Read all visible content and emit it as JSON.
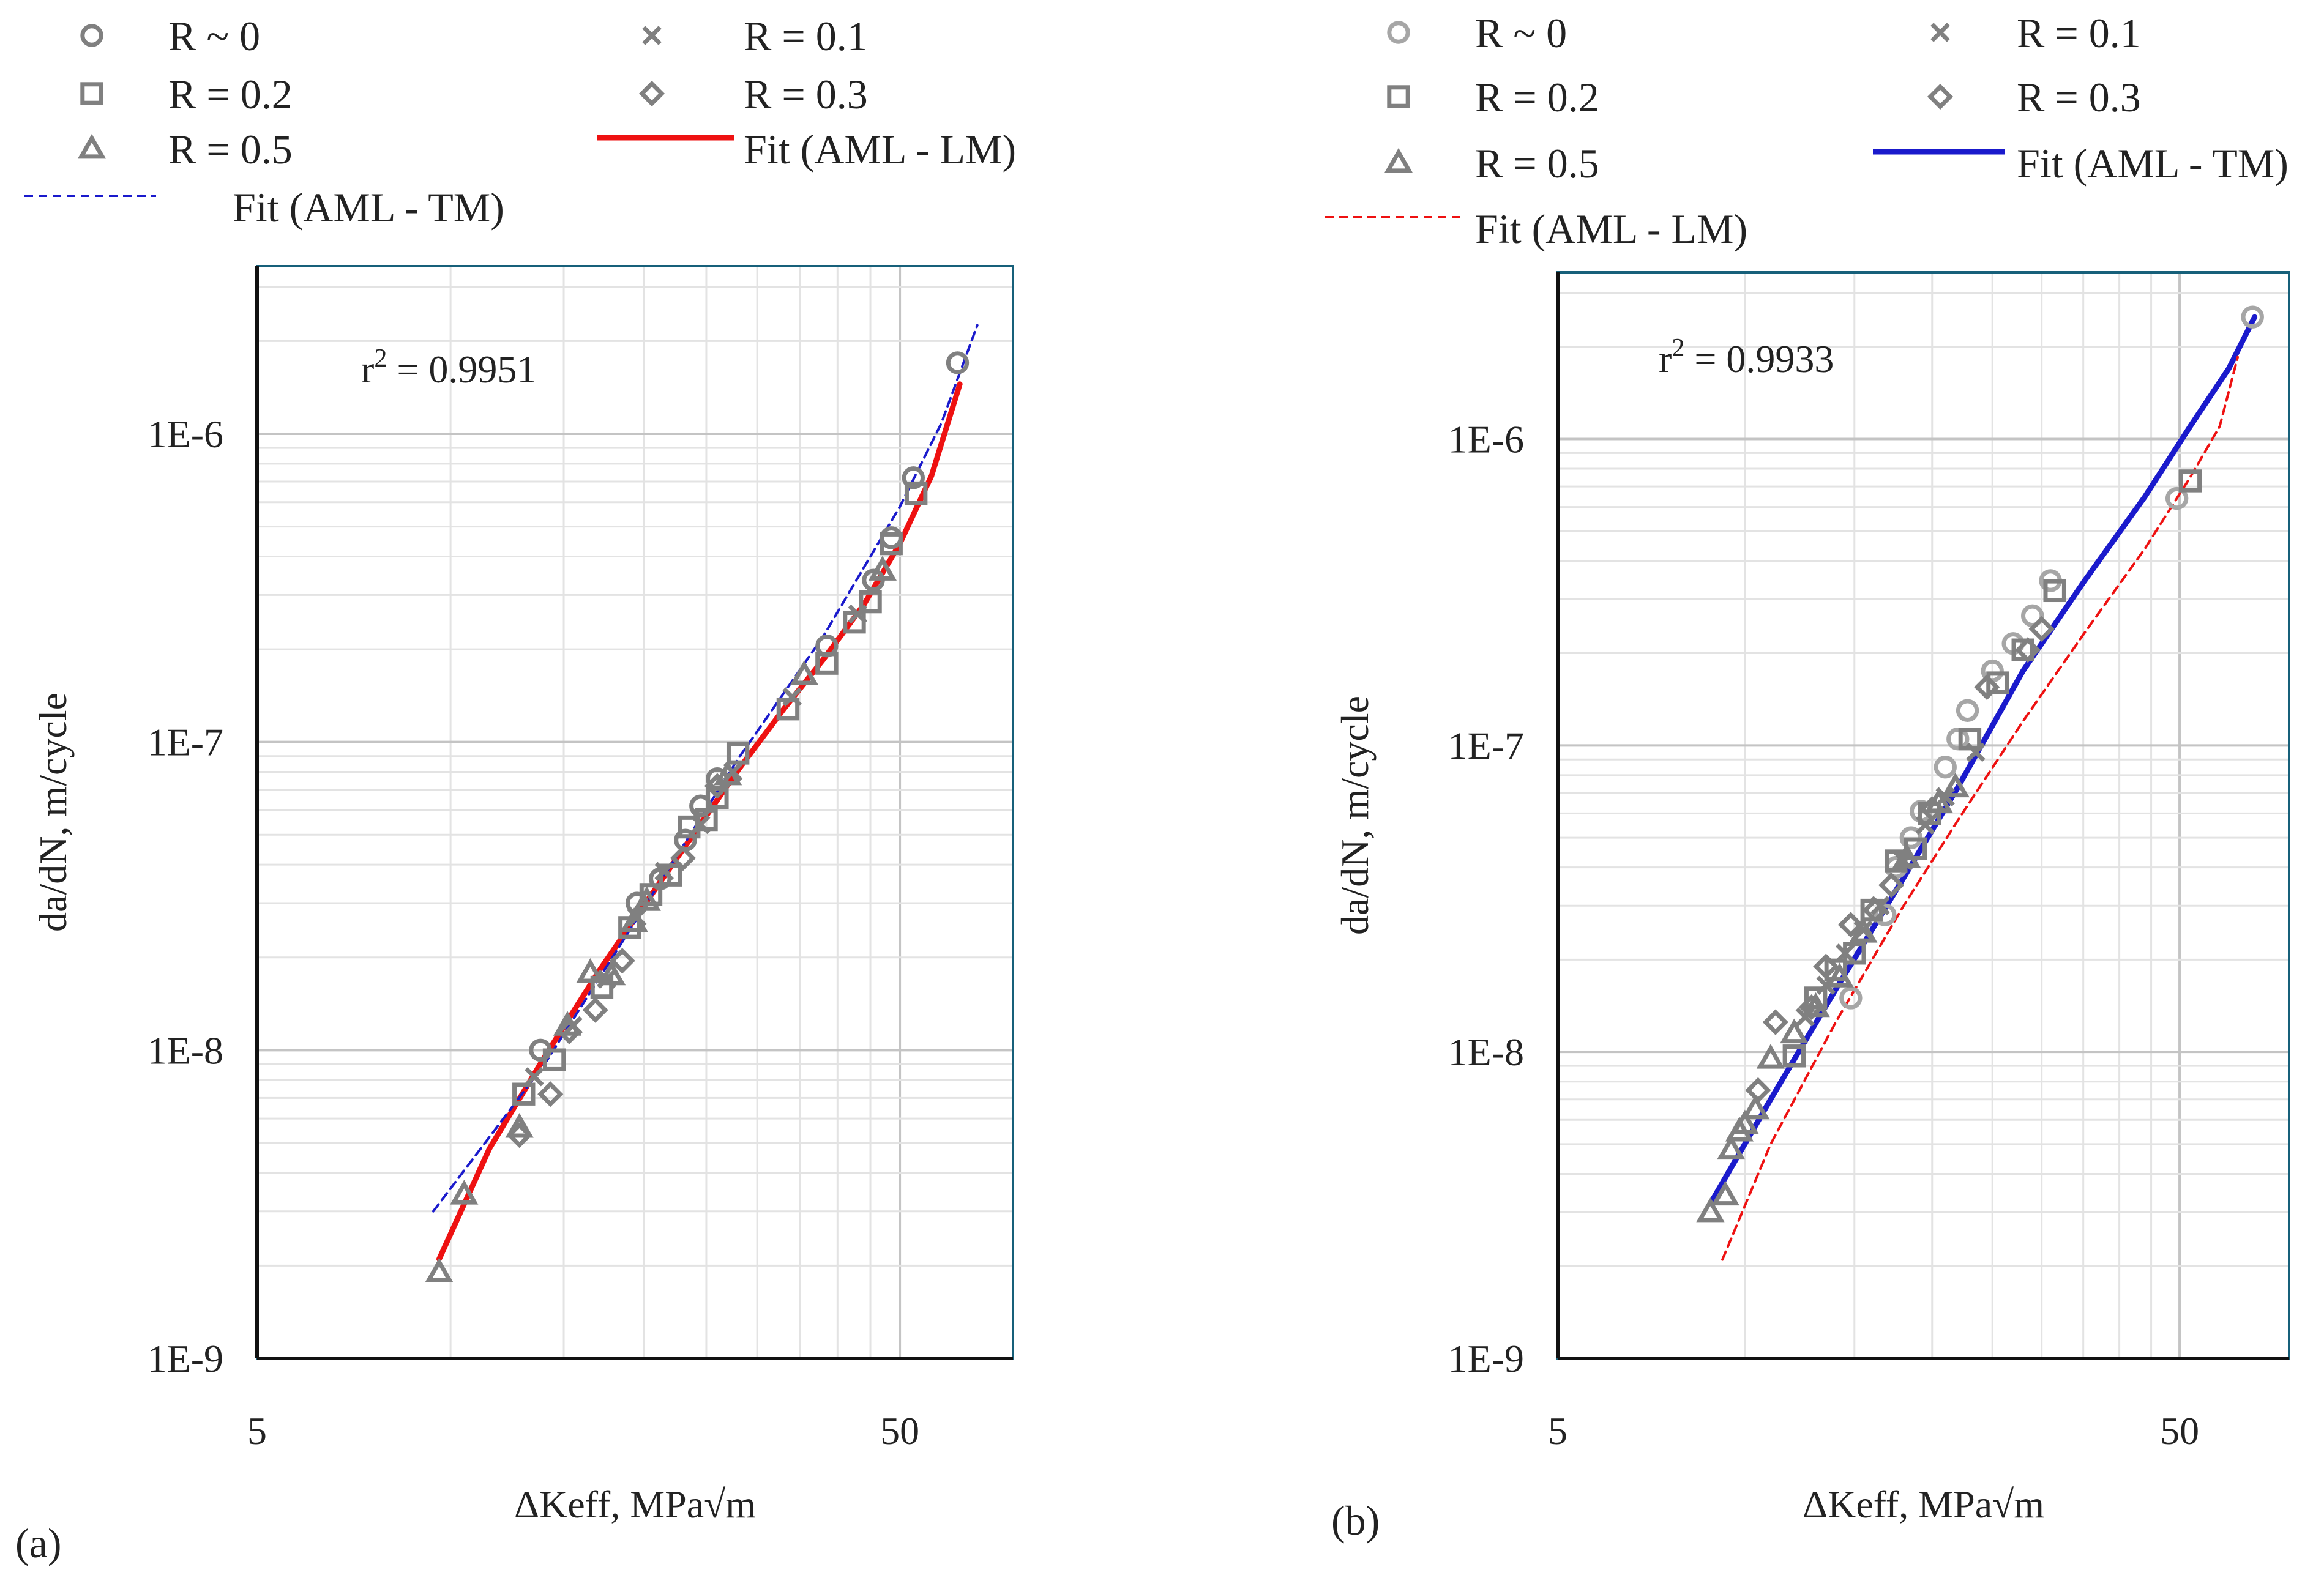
{
  "chart_data": [
    {
      "type": "scatter",
      "panel_label": "(a)",
      "xlabel": "ΔKeff, MPa√m",
      "ylabel": "da/dN, m/cycle",
      "xscale": "log",
      "yscale": "log",
      "xlim": [
        5,
        75
      ],
      "ylim": [
        1e-09,
        3.5e-06
      ],
      "x_ticks": [
        {
          "value": 5,
          "label": "5"
        },
        {
          "value": 50,
          "label": "50"
        }
      ],
      "y_ticks": [
        {
          "value": 1e-09,
          "label": "1E-9"
        },
        {
          "value": 1e-08,
          "label": "1E-8"
        },
        {
          "value": 1e-07,
          "label": "1E-7"
        },
        {
          "value": 1e-06,
          "label": "1E-6"
        }
      ],
      "annotation": {
        "prefix": "r",
        "sup": "2",
        "suffix": " = 0.9951"
      },
      "legend_position": "top",
      "legend": [
        {
          "label": "R ~ 0",
          "marker": "circle",
          "color": "#808080"
        },
        {
          "label": "R = 0.1",
          "marker": "x",
          "color": "#808080"
        },
        {
          "label": "R = 0.2",
          "marker": "square",
          "color": "#808080"
        },
        {
          "label": "R = 0.3",
          "marker": "diamond",
          "color": "#808080"
        },
        {
          "label": "R = 0.5",
          "marker": "triangle",
          "color": "#808080"
        },
        {
          "label": "Fit (AML - LM)",
          "line": "solid",
          "color": "#ee1111"
        },
        {
          "label": "Fit (AML - TM)",
          "line": "dashed",
          "color": "#1a1acc"
        }
      ],
      "series": [
        {
          "name": "R ~ 0",
          "marker": "circle",
          "color": "#808080",
          "points": [
            [
              13.8,
              1e-08
            ],
            [
              19.5,
              3e-08
            ],
            [
              21.2,
              3.6e-08
            ],
            [
              23.2,
              4.8e-08
            ],
            [
              24.5,
              6.2e-08
            ],
            [
              26.0,
              7.6e-08
            ],
            [
              38.5,
              2.05e-07
            ],
            [
              45.5,
              3.35e-07
            ],
            [
              48.5,
              4.6e-07
            ],
            [
              52.5,
              7.2e-07
            ],
            [
              61.5,
              1.7e-06
            ]
          ]
        },
        {
          "name": "R = 0.1",
          "marker": "x",
          "color": "#808080",
          "points": [
            [
              13.5,
              8.2e-09
            ],
            [
              15.5,
              1.2e-08
            ],
            [
              17.5,
              1.7e-08
            ],
            [
              19.5,
              2.7e-08
            ],
            [
              21.5,
              3.8e-08
            ],
            [
              24.5,
              5.4e-08
            ],
            [
              27.5,
              8e-08
            ],
            [
              34.0,
              1.4e-07
            ],
            [
              43.0,
              2.6e-07
            ]
          ]
        },
        {
          "name": "R = 0.2",
          "marker": "square",
          "color": "#808080",
          "points": [
            [
              13.0,
              7.2e-09
            ],
            [
              14.5,
              9.3e-09
            ],
            [
              17.2,
              1.6e-08
            ],
            [
              19.0,
              2.5e-08
            ],
            [
              20.5,
              3.2e-08
            ],
            [
              22.0,
              3.7e-08
            ],
            [
              23.5,
              5.3e-08
            ],
            [
              25.0,
              5.6e-08
            ],
            [
              26.0,
              6.6e-08
            ],
            [
              28.0,
              9.2e-08
            ],
            [
              33.5,
              1.28e-07
            ],
            [
              38.5,
              1.8e-07
            ],
            [
              42.5,
              2.45e-07
            ],
            [
              45.0,
              2.85e-07
            ],
            [
              48.5,
              4.4e-07
            ],
            [
              53.0,
              6.4e-07
            ]
          ]
        },
        {
          "name": "R = 0.3",
          "marker": "diamond",
          "color": "#808080",
          "points": [
            [
              12.8,
              5.3e-09
            ],
            [
              14.3,
              7.2e-09
            ],
            [
              15.3,
              1.15e-08
            ],
            [
              16.8,
              1.35e-08
            ],
            [
              18.5,
              1.95e-08
            ],
            [
              23.0,
              4.2e-08
            ],
            [
              26.0,
              7.2e-08
            ]
          ]
        },
        {
          "name": "R = 0.5",
          "marker": "triangle",
          "color": "#808080",
          "points": [
            [
              9.6,
              1.9e-09
            ],
            [
              10.5,
              3.4e-09
            ],
            [
              12.8,
              5.6e-09
            ],
            [
              15.2,
              1.2e-08
            ],
            [
              16.5,
              1.78e-08
            ],
            [
              17.8,
              1.75e-08
            ],
            [
              19.3,
              2.6e-08
            ],
            [
              20.2,
              3.05e-08
            ],
            [
              27.0,
              7.8e-08
            ],
            [
              35.5,
              1.65e-07
            ],
            [
              47.0,
              3.6e-07
            ]
          ]
        }
      ],
      "fits": [
        {
          "name": "Fit (AML - LM)",
          "style": "solid",
          "color": "#ee1111",
          "points": [
            [
              9.6,
              2.1e-09
            ],
            [
              11.5,
              4.8e-09
            ],
            [
              14.0,
              9.5e-09
            ],
            [
              17.0,
              1.8e-08
            ],
            [
              20.0,
              2.95e-08
            ],
            [
              24.0,
              5.1e-08
            ],
            [
              28.0,
              8.1e-08
            ],
            [
              33.0,
              1.28e-07
            ],
            [
              38.0,
              1.85e-07
            ],
            [
              44.0,
              2.8e-07
            ],
            [
              50.0,
              4.4e-07
            ],
            [
              56.0,
              7.3e-07
            ],
            [
              62.0,
              1.45e-06
            ]
          ]
        },
        {
          "name": "Fit (AML - TM)",
          "style": "dashed",
          "color": "#1a1acc",
          "points": [
            [
              9.4,
              3e-09
            ],
            [
              14.0,
              9e-09
            ],
            [
              20.0,
              2.9e-08
            ],
            [
              28.0,
              8.8e-08
            ],
            [
              38.0,
              2.2e-07
            ],
            [
              50.0,
              5.8e-07
            ],
            [
              58.0,
              1.08e-06
            ],
            [
              66.0,
              2.25e-06
            ]
          ]
        }
      ]
    },
    {
      "type": "scatter",
      "panel_label": "(b)",
      "xlabel": "ΔKeff, MPa√m",
      "ylabel": "da/dN, m/cycle",
      "xscale": "log",
      "yscale": "log",
      "xlim": [
        5,
        75
      ],
      "ylim": [
        1e-09,
        3.5e-06
      ],
      "x_ticks": [
        {
          "value": 5,
          "label": "5"
        },
        {
          "value": 50,
          "label": "50"
        }
      ],
      "y_ticks": [
        {
          "value": 1e-09,
          "label": "1E-9"
        },
        {
          "value": 1e-08,
          "label": "1E-8"
        },
        {
          "value": 1e-07,
          "label": "1E-7"
        },
        {
          "value": 1e-06,
          "label": "1E-6"
        }
      ],
      "annotation": {
        "prefix": "r",
        "sup": "2",
        "suffix": " = 0.9933"
      },
      "legend_position": "top",
      "legend": [
        {
          "label": "R ~ 0",
          "marker": "circle",
          "color": "#a6a6a6"
        },
        {
          "label": "R = 0.1",
          "marker": "x",
          "color": "#808080"
        },
        {
          "label": "R = 0.2",
          "marker": "square",
          "color": "#808080"
        },
        {
          "label": "R = 0.3",
          "marker": "diamond",
          "color": "#808080"
        },
        {
          "label": "R = 0.5",
          "marker": "triangle",
          "color": "#808080"
        },
        {
          "label": "Fit (AML - TM)",
          "line": "solid",
          "color": "#1a1acc"
        },
        {
          "label": "Fit (AML - LM)",
          "line": "dashed",
          "color": "#ee1111"
        }
      ],
      "series": [
        {
          "name": "R ~ 0",
          "marker": "circle",
          "color": "#a6a6a6",
          "points": [
            [
              14.8,
              1.5e-08
            ],
            [
              16.8,
              2.8e-08
            ],
            [
              17.5,
              4e-08
            ],
            [
              18.5,
              5e-08
            ],
            [
              19.2,
              6.1e-08
            ],
            [
              21.0,
              8.5e-08
            ],
            [
              22.0,
              1.05e-07
            ],
            [
              22.8,
              1.3e-07
            ],
            [
              25.0,
              1.75e-07
            ],
            [
              27.0,
              2.15e-07
            ],
            [
              29.0,
              2.65e-07
            ],
            [
              31.0,
              3.45e-07
            ],
            [
              49.5,
              6.4e-07
            ],
            [
              65.5,
              2.5e-06
            ]
          ]
        },
        {
          "name": "R = 0.1",
          "marker": "x",
          "color": "#808080",
          "points": [
            [
              12.5,
              1.3e-08
            ],
            [
              13.5,
              1.65e-08
            ],
            [
              14.5,
              2.1e-08
            ],
            [
              15.5,
              2.5e-08
            ],
            [
              16.5,
              3e-08
            ],
            [
              18.0,
              4.2e-08
            ],
            [
              19.5,
              5.5e-08
            ],
            [
              21.0,
              6.8e-08
            ],
            [
              23.5,
              9.5e-08
            ]
          ]
        },
        {
          "name": "R = 0.2",
          "marker": "square",
          "color": "#808080",
          "points": [
            [
              12.0,
              9.7e-09
            ],
            [
              13.0,
              1.5e-08
            ],
            [
              14.0,
              1.85e-08
            ],
            [
              15.0,
              2.1e-08
            ],
            [
              16.0,
              2.9e-08
            ],
            [
              17.5,
              4.2e-08
            ],
            [
              18.8,
              4.6e-08
            ],
            [
              19.8,
              6e-08
            ],
            [
              23.0,
              1.05e-07
            ],
            [
              25.5,
              1.6e-07
            ],
            [
              28.0,
              2.05e-07
            ],
            [
              31.5,
              3.2e-07
            ],
            [
              52.0,
              7.3e-07
            ]
          ]
        },
        {
          "name": "R = 0.3",
          "marker": "diamond",
          "color": "#808080",
          "points": [
            [
              10.5,
              7.5e-09
            ],
            [
              11.2,
              1.25e-08
            ],
            [
              12.8,
              1.4e-08
            ],
            [
              13.5,
              1.9e-08
            ],
            [
              14.8,
              2.6e-08
            ],
            [
              16.2,
              2.9e-08
            ],
            [
              17.2,
              3.5e-08
            ],
            [
              20.0,
              6.2e-08
            ],
            [
              24.5,
              1.55e-07
            ],
            [
              28.5,
              2.05e-07
            ],
            [
              30.0,
              2.4e-07
            ]
          ]
        },
        {
          "name": "R = 0.5",
          "marker": "triangle",
          "color": "#808080",
          "points": [
            [
              8.8,
              3e-09
            ],
            [
              9.3,
              3.4e-09
            ],
            [
              9.5,
              4.8e-09
            ],
            [
              9.8,
              5.5e-09
            ],
            [
              10.0,
              5.8e-09
            ],
            [
              10.4,
              6.5e-09
            ],
            [
              11.0,
              9.5e-09
            ],
            [
              12.0,
              1.15e-08
            ],
            [
              13.0,
              1.4e-08
            ],
            [
              14.2,
              1.75e-08
            ],
            [
              15.5,
              2.45e-08
            ],
            [
              18.2,
              4.3e-08
            ],
            [
              20.5,
              6.5e-08
            ],
            [
              21.8,
              7.3e-08
            ]
          ]
        }
      ],
      "fits": [
        {
          "name": "Fit (AML - TM)",
          "style": "solid",
          "color": "#1a1acc",
          "points": [
            [
              8.8,
              3.2e-09
            ],
            [
              11.0,
              7e-09
            ],
            [
              14.0,
              1.6e-08
            ],
            [
              18.0,
              3.7e-08
            ],
            [
              22.0,
              7.3e-08
            ],
            [
              28.0,
              1.75e-07
            ],
            [
              35.0,
              3.4e-07
            ],
            [
              44.0,
              6.5e-07
            ],
            [
              52.0,
              1.1e-06
            ],
            [
              60.0,
              1.7e-06
            ],
            [
              66.0,
              2.5e-06
            ]
          ]
        },
        {
          "name": "Fit (AML - LM)",
          "style": "dashed",
          "color": "#ee1111",
          "points": [
            [
              9.2,
              2.1e-09
            ],
            [
              11.0,
              5e-09
            ],
            [
              14.0,
              1.25e-08
            ],
            [
              18.0,
              3e-08
            ],
            [
              22.0,
              5.7e-08
            ],
            [
              28.0,
              1.2e-07
            ],
            [
              35.0,
              2.3e-07
            ],
            [
              44.0,
              4.4e-07
            ],
            [
              52.0,
              7.5e-07
            ],
            [
              58.0,
              1.1e-06
            ],
            [
              62.0,
              1.85e-06
            ]
          ]
        }
      ]
    }
  ]
}
